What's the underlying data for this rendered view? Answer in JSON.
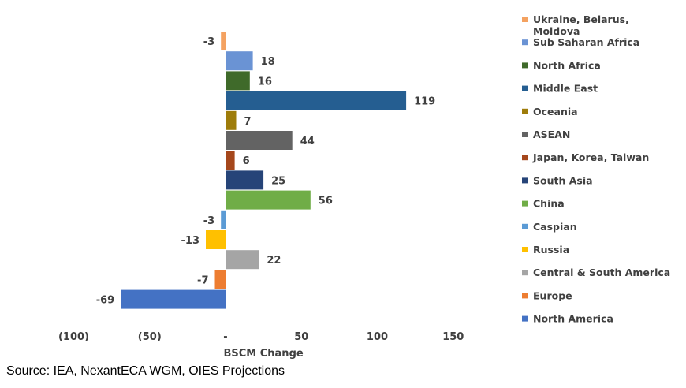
{
  "chart_data": {
    "type": "bar",
    "orientation": "horizontal",
    "xlabel": "BSCM Change",
    "xlim": [
      -100,
      150
    ],
    "x_ticks": [
      {
        "value": -100,
        "label": "(100)"
      },
      {
        "value": -50,
        "label": "(50)"
      },
      {
        "value": 0,
        "label": "-"
      },
      {
        "value": 50,
        "label": "50"
      },
      {
        "value": 100,
        "label": "100"
      },
      {
        "value": 150,
        "label": "150"
      }
    ],
    "grid": false,
    "legend_position": "right",
    "categories": [
      {
        "name": "Ukraine, Belarus, Moldova",
        "legend_lines": [
          "Ukraine, Belarus,",
          "Moldova"
        ],
        "value": -3,
        "color": "#F4A261"
      },
      {
        "name": "Sub Saharan Africa",
        "legend_lines": [
          "Sub Saharan Africa"
        ],
        "value": 18,
        "color": "#6A93D4"
      },
      {
        "name": "North Africa",
        "legend_lines": [
          "North Africa"
        ],
        "value": 16,
        "color": "#3F6A2A"
      },
      {
        "name": "Middle East",
        "legend_lines": [
          "Middle East"
        ],
        "value": 119,
        "color": "#255E91"
      },
      {
        "name": "Oceania",
        "legend_lines": [
          "Oceania"
        ],
        "value": 7,
        "color": "#9E7C0A"
      },
      {
        "name": "ASEAN",
        "legend_lines": [
          "ASEAN"
        ],
        "value": 44,
        "color": "#636363"
      },
      {
        "name": "Japan, Korea, Taiwan",
        "legend_lines": [
          "Japan, Korea, Taiwan"
        ],
        "value": 6,
        "color": "#A5471C"
      },
      {
        "name": "South Asia",
        "legend_lines": [
          "South Asia"
        ],
        "value": 25,
        "color": "#264478"
      },
      {
        "name": "China",
        "legend_lines": [
          "China"
        ],
        "value": 56,
        "color": "#70AD47"
      },
      {
        "name": "Caspian",
        "legend_lines": [
          "Caspian"
        ],
        "value": -3,
        "color": "#5B9BD5"
      },
      {
        "name": "Russia",
        "legend_lines": [
          "Russia"
        ],
        "value": -13,
        "color": "#FFC000"
      },
      {
        "name": "Central & South America",
        "legend_lines": [
          "Central & South America"
        ],
        "value": 22,
        "color": "#A5A5A5"
      },
      {
        "name": "Europe",
        "legend_lines": [
          "Europe"
        ],
        "value": -7,
        "color": "#ED7D31"
      },
      {
        "name": "North America",
        "legend_lines": [
          "North America"
        ],
        "value": -69,
        "color": "#4472C4"
      }
    ]
  },
  "source": "Source: IEA, NexantECA WGM, OIES Projections"
}
